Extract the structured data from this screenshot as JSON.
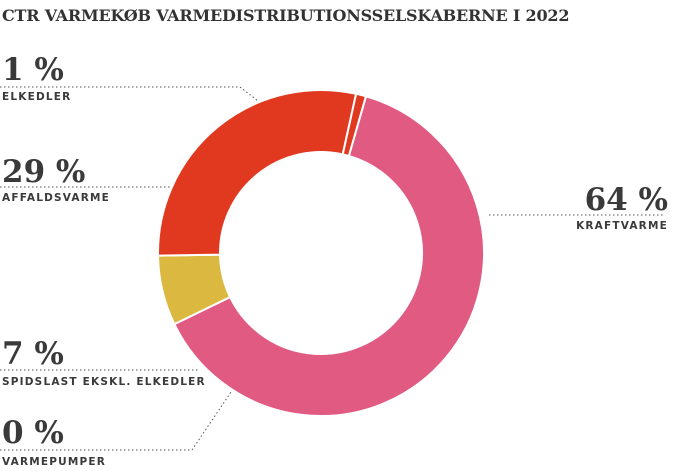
{
  "chart_data": {
    "type": "pie",
    "title": "CTR VARMEKØB VARMEDISTRIBUTIONSSELSKABERNE I 2022",
    "donut": true,
    "slices": [
      {
        "label": "KRAFTVARME",
        "value": 64,
        "display": "64 %",
        "color": "#e05a82"
      },
      {
        "label": "VARMEPUMPER",
        "value": 0,
        "display": "0 %",
        "color": "#d9b73e"
      },
      {
        "label": "SPIDSLAST EKSKL. ELKEDLER",
        "value": 7,
        "display": "7 %",
        "color": "#dbb840"
      },
      {
        "label": "AFFALDSVARME",
        "value": 29,
        "display": "29 %",
        "color": "#e0391f"
      },
      {
        "label": "ELKEDLER",
        "value": 1,
        "display": "1 %",
        "color": "#e0391f"
      }
    ]
  }
}
